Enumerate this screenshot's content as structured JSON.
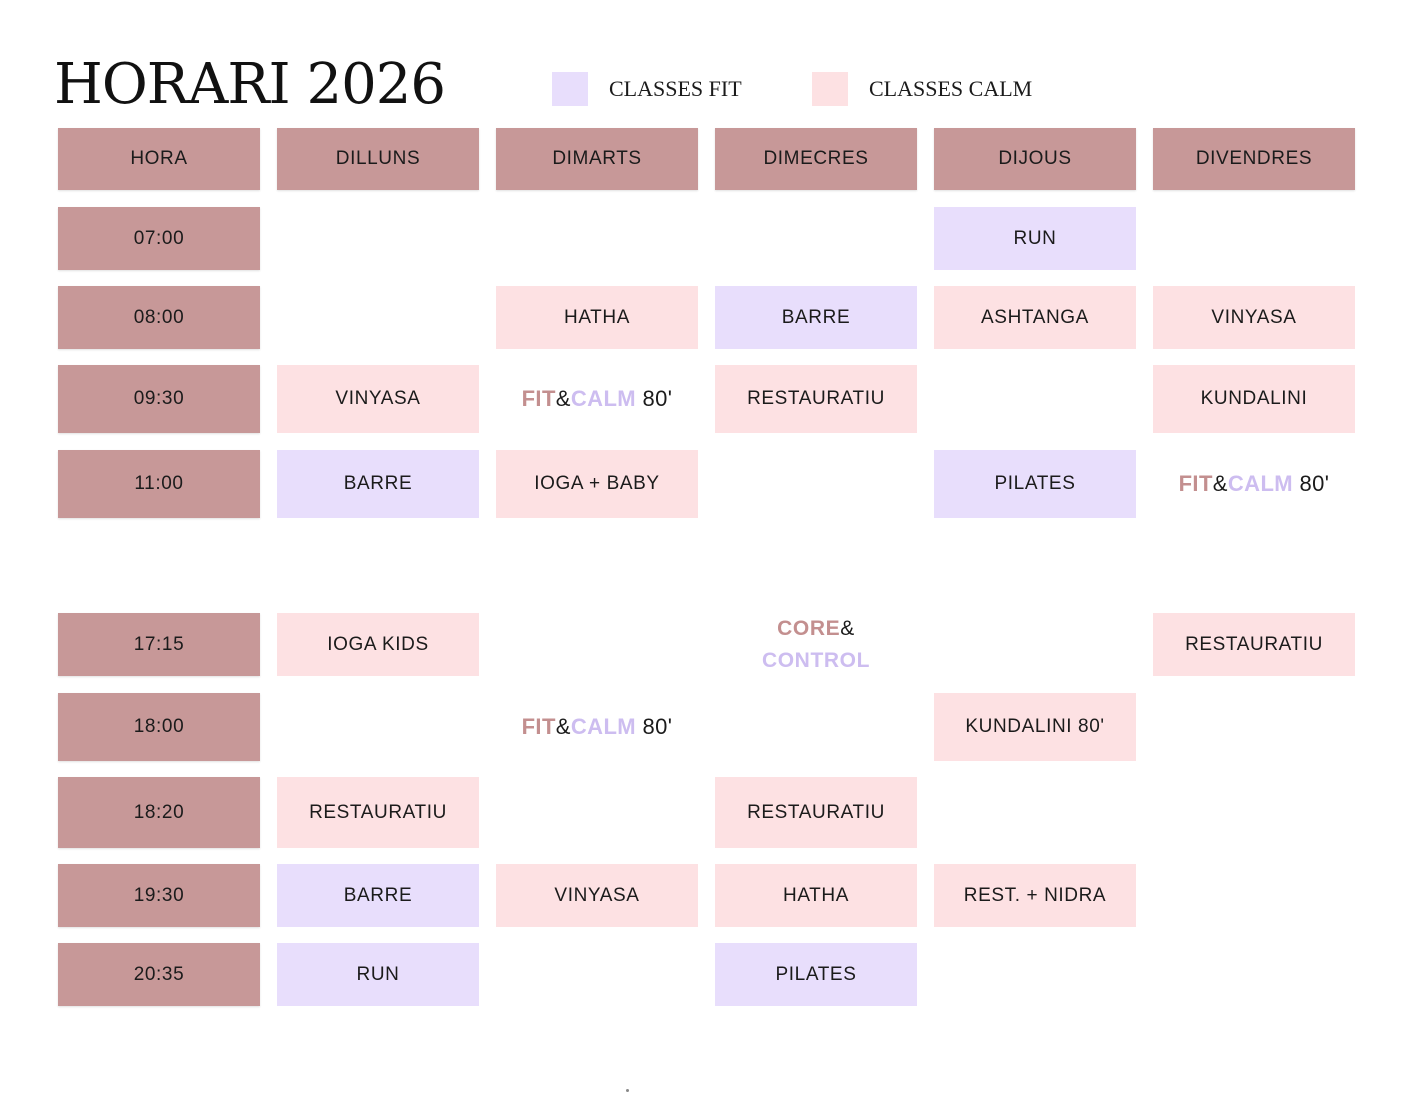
{
  "title": "HORARI 2026",
  "legend": {
    "fit": {
      "label": "CLASSES FIT",
      "color": "#e8defc"
    },
    "calm": {
      "label": "CLASSES CALM",
      "color": "#fde1e3"
    }
  },
  "colors": {
    "header": "#c79898",
    "fit": "#e8defc",
    "calm": "#fde1e3",
    "fit_text": "#c38f8f",
    "calm_text": "#cdbdf0"
  },
  "columns": [
    "HORA",
    "DILLUNS",
    "DIMARTS",
    "DIMECRES",
    "DIJOUS",
    "DIVENDRES"
  ],
  "rows": [
    {
      "hour": "07:00",
      "cells": [
        null,
        null,
        null,
        {
          "type": "fit",
          "text": "RUN"
        },
        null
      ]
    },
    {
      "hour": "08:00",
      "cells": [
        null,
        {
          "type": "calm",
          "text": "HATHA"
        },
        {
          "type": "fit",
          "text": "BARRE"
        },
        {
          "type": "calm",
          "text": "ASHTANGA"
        },
        {
          "type": "calm",
          "text": "VINYASA"
        }
      ]
    },
    {
      "hour": "09:30",
      "cells": [
        {
          "type": "calm",
          "text": "VINYASA"
        },
        {
          "type": "fitcalm",
          "fit": "FIT",
          "amp": "&",
          "calm": "CALM",
          "dur": "80'"
        },
        {
          "type": "calm",
          "text": "RESTAURATIU"
        },
        null,
        {
          "type": "calm",
          "text": "KUNDALINI"
        }
      ]
    },
    {
      "hour": "11:00",
      "cells": [
        {
          "type": "fit",
          "text": "BARRE"
        },
        {
          "type": "calm",
          "text": "IOGA + BABY"
        },
        null,
        {
          "type": "fit",
          "text": "PILATES"
        },
        {
          "type": "fitcalm",
          "fit": "FIT",
          "amp": "&",
          "calm": "CALM",
          "dur": "80'"
        }
      ]
    },
    {
      "hour": "",
      "cells": [
        null,
        null,
        null,
        null,
        null
      ]
    },
    {
      "hour": "17:15",
      "cells": [
        {
          "type": "calm",
          "text": "IOGA KIDS"
        },
        null,
        {
          "type": "core",
          "core": "CORE",
          "amp": "&",
          "control": "CONTROL"
        },
        null,
        {
          "type": "calm",
          "text": "RESTAURATIU"
        }
      ]
    },
    {
      "hour": "18:00",
      "cells": [
        null,
        {
          "type": "fitcalm",
          "fit": "FIT",
          "amp": "&",
          "calm": "CALM",
          "dur": "80'"
        },
        null,
        {
          "type": "calm",
          "text": "KUNDALINI 80'"
        },
        null
      ]
    },
    {
      "hour": "18:20",
      "cells": [
        {
          "type": "calm",
          "text": "RESTAURATIU"
        },
        null,
        {
          "type": "calm",
          "text": "RESTAURATIU"
        },
        null,
        null
      ]
    },
    {
      "hour": "19:30",
      "cells": [
        {
          "type": "fit",
          "text": "BARRE"
        },
        {
          "type": "calm",
          "text": "VINYASA"
        },
        {
          "type": "calm",
          "text": "HATHA"
        },
        {
          "type": "calm",
          "text": "REST. + NIDRA"
        },
        null
      ]
    },
    {
      "hour": "20:35",
      "cells": [
        {
          "type": "fit",
          "text": "RUN"
        },
        null,
        {
          "type": "fit",
          "text": "PILATES"
        },
        null,
        null
      ]
    }
  ]
}
